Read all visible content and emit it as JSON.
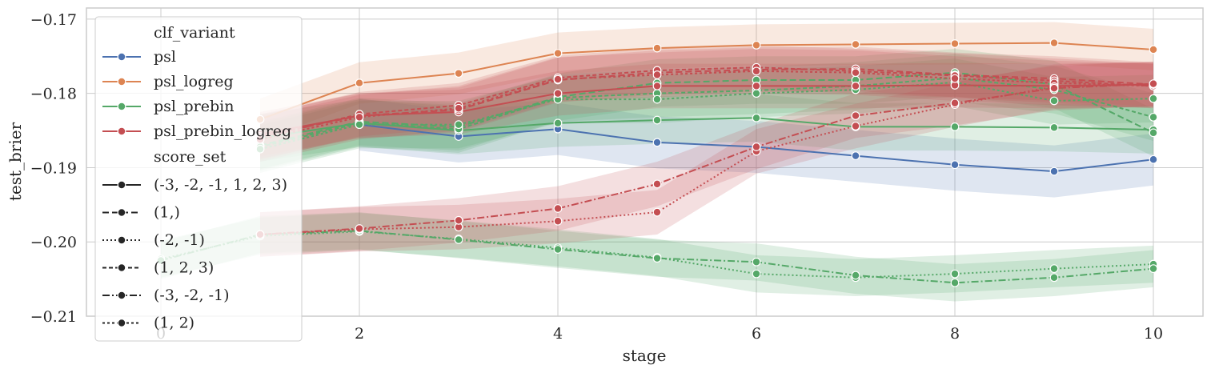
{
  "chart_data": {
    "type": "line",
    "xlabel": "stage",
    "ylabel": "test_brier",
    "xlim": [
      -0.75,
      10.5
    ],
    "ylim": [
      -0.21,
      -0.1685
    ],
    "xticks": [
      0,
      2,
      4,
      6,
      8,
      10
    ],
    "yticks": [
      -0.21,
      -0.2,
      -0.19,
      -0.18,
      -0.17
    ],
    "ytick_labels": [
      "−0.21",
      "−0.20",
      "−0.19",
      "−0.18",
      "−0.17"
    ],
    "grid": true,
    "legend": {
      "placement": "top-left",
      "hue_title": "clf_variant",
      "style_title": "score_set"
    },
    "hue_levels": [
      {
        "name": "psl",
        "color": "#4c72b0"
      },
      {
        "name": "psl_logreg",
        "color": "#dd8452"
      },
      {
        "name": "psl_prebin",
        "color": "#55a868"
      },
      {
        "name": "psl_prebin_logreg",
        "color": "#c44e52"
      }
    ],
    "style_levels": [
      {
        "name": "(-3, -2, -1, 1, 2, 3)",
        "dash": ""
      },
      {
        "name": "(1,)",
        "dash": "8,4"
      },
      {
        "name": "(-2, -1)",
        "dash": "2,3"
      },
      {
        "name": "(1, 2, 3)",
        "dash": "5,3"
      },
      {
        "name": "(-3, -2, -1)",
        "dash": "9,3,2,3"
      },
      {
        "name": "(1, 2)",
        "dash": "3,3"
      }
    ],
    "series": [
      {
        "hue": "psl",
        "style": "(-3, -2, -1, 1, 2, 3)",
        "x": [
          2,
          3,
          4,
          5,
          6,
          7,
          8,
          9,
          10
        ],
        "y": [
          -0.1842,
          -0.1858,
          -0.1848,
          -0.1866,
          -0.1872,
          -0.1884,
          -0.1896,
          -0.1905,
          -0.1889
        ],
        "band": 0.0035
      },
      {
        "hue": "psl_logreg",
        "style": "(-3, -2, -1, 1, 2, 3)",
        "x": [
          1,
          2,
          3,
          4,
          5,
          6,
          7,
          8,
          9,
          10
        ],
        "y": [
          -0.1835,
          -0.1786,
          -0.1773,
          -0.1746,
          -0.1739,
          -0.1735,
          -0.1734,
          -0.1733,
          -0.1732,
          -0.1741
        ],
        "band": 0.0028
      },
      {
        "hue": "psl_prebin",
        "style": "(-3, -2, -1, 1, 2, 3)",
        "x": [
          1,
          2,
          3,
          4,
          5,
          6,
          7,
          8,
          9,
          10
        ],
        "y": [
          -0.186,
          -0.184,
          -0.185,
          -0.184,
          -0.1836,
          -0.1833,
          -0.1845,
          -0.1845,
          -0.1846,
          -0.1849
        ],
        "band": 0.0032
      },
      {
        "hue": "psl_prebin",
        "style": "(1,)",
        "x": [
          1,
          2,
          3,
          4,
          5,
          6,
          7,
          8,
          9,
          10
        ],
        "y": [
          -0.187,
          -0.1838,
          -0.1845,
          -0.1805,
          -0.1786,
          -0.1782,
          -0.1782,
          -0.1772,
          -0.1788,
          -0.1853
        ],
        "band": 0.0032
      },
      {
        "hue": "psl_prebin",
        "style": "(1, 2, 3)",
        "x": [
          1,
          2,
          3,
          4,
          5,
          6,
          7,
          8,
          9,
          10
        ],
        "y": [
          -0.1872,
          -0.184,
          -0.1848,
          -0.1806,
          -0.18,
          -0.1796,
          -0.179,
          -0.1779,
          -0.1795,
          -0.1832
        ],
        "band": 0.0032
      },
      {
        "hue": "psl_prebin",
        "style": "(1, 2)",
        "x": [
          1,
          2,
          3,
          4,
          5,
          6,
          7,
          8,
          9,
          10
        ],
        "y": [
          -0.1875,
          -0.1842,
          -0.1842,
          -0.1808,
          -0.1808,
          -0.18,
          -0.1795,
          -0.1785,
          -0.181,
          -0.1807
        ],
        "band": 0.0032
      },
      {
        "hue": "psl_prebin",
        "style": "(-2, -1)",
        "x": [
          0,
          1,
          2,
          3,
          4,
          5,
          6,
          7,
          8,
          9,
          10
        ],
        "y": [
          -0.2023,
          -0.1992,
          -0.1986,
          -0.1996,
          -0.2008,
          -0.2021,
          -0.2043,
          -0.2048,
          -0.2043,
          -0.2036,
          -0.203
        ],
        "band": 0.0025
      },
      {
        "hue": "psl_prebin",
        "style": "(-3, -2, -1)",
        "x": [
          0,
          1,
          2,
          3,
          4,
          5,
          6,
          7,
          8,
          9,
          10
        ],
        "y": [
          -0.2025,
          -0.199,
          -0.1985,
          -0.1997,
          -0.201,
          -0.2022,
          -0.2027,
          -0.2045,
          -0.2055,
          -0.2048,
          -0.2036
        ],
        "band": 0.0025
      },
      {
        "hue": "psl_prebin_logreg",
        "style": "(-3, -2, -1, 1, 2, 3)",
        "x": [
          1,
          2,
          3,
          4,
          5,
          6,
          7,
          8,
          9,
          10
        ],
        "y": [
          -0.1855,
          -0.183,
          -0.1825,
          -0.18,
          -0.179,
          -0.179,
          -0.179,
          -0.1789,
          -0.179,
          -0.1788
        ],
        "band": 0.003
      },
      {
        "hue": "psl_prebin_logreg",
        "style": "(1,)",
        "x": [
          1,
          2,
          3,
          4,
          5,
          6,
          7,
          8,
          9,
          10
        ],
        "y": [
          -0.1858,
          -0.183,
          -0.1822,
          -0.1782,
          -0.1772,
          -0.1768,
          -0.1767,
          -0.1775,
          -0.178,
          -0.1788
        ],
        "band": 0.003
      },
      {
        "hue": "psl_prebin_logreg",
        "style": "(1, 2, 3)",
        "x": [
          1,
          2,
          3,
          4,
          5,
          6,
          7,
          8,
          9,
          10
        ],
        "y": [
          -0.186,
          -0.1828,
          -0.1816,
          -0.1779,
          -0.1769,
          -0.1765,
          -0.177,
          -0.1776,
          -0.1783,
          -0.179
        ],
        "band": 0.003
      },
      {
        "hue": "psl_prebin_logreg",
        "style": "(1, 2)",
        "x": [
          1,
          2,
          3,
          4,
          5,
          6,
          7,
          8,
          9,
          10
        ],
        "y": [
          -0.1862,
          -0.1832,
          -0.182,
          -0.1781,
          -0.1775,
          -0.177,
          -0.1772,
          -0.178,
          -0.1786,
          -0.179
        ],
        "band": 0.003
      },
      {
        "hue": "psl_prebin_logreg",
        "style": "(-2, -1)",
        "x": [
          1,
          2,
          3,
          4,
          5,
          6,
          7,
          8,
          9,
          10
        ],
        "y": [
          -0.199,
          -0.1983,
          -0.198,
          -0.1972,
          -0.196,
          -0.1878,
          -0.1844,
          -0.1815,
          -0.1791,
          -0.1788
        ],
        "band": 0.003
      },
      {
        "hue": "psl_prebin_logreg",
        "style": "(-3, -2, -1)",
        "x": [
          1,
          2,
          3,
          4,
          5,
          6,
          7,
          8,
          9,
          10
        ],
        "y": [
          -0.199,
          -0.1982,
          -0.1971,
          -0.1955,
          -0.1922,
          -0.1872,
          -0.183,
          -0.1813,
          -0.1793,
          -0.1787
        ],
        "band": 0.003
      }
    ]
  }
}
